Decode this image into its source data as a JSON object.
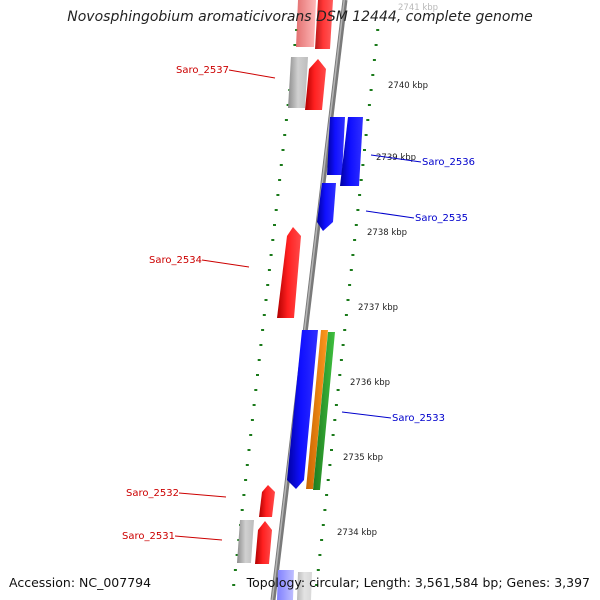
{
  "title": "Novosphingobium aromaticivorans DSM 12444, complete genome",
  "footer": {
    "accession": "Accession: NC_007794",
    "topology": "Topology: circular; Length: 3,561,584 bp; Genes: 3,397"
  },
  "colors": {
    "forward_strand": "#ff0000",
    "reverse_strand": "#0000ff",
    "pseudo_or_other": "#b0b0b0",
    "backbone": "#808080",
    "tick": "#1a7a1a",
    "orange_feature": "#ff8c00",
    "green_feature": "#33aa33"
  },
  "kbp_labels": [
    "2741 kbp",
    "2740 kbp",
    "2739 kbp",
    "2738 kbp",
    "2737 kbp",
    "2736 kbp",
    "2735 kbp",
    "2734 kbp"
  ],
  "gene_labels": {
    "left": [
      "Saro_2537",
      "Saro_2534",
      "Saro_2532",
      "Saro_2531"
    ],
    "right": [
      "Saro_2536",
      "Saro_2535",
      "Saro_2533"
    ]
  }
}
